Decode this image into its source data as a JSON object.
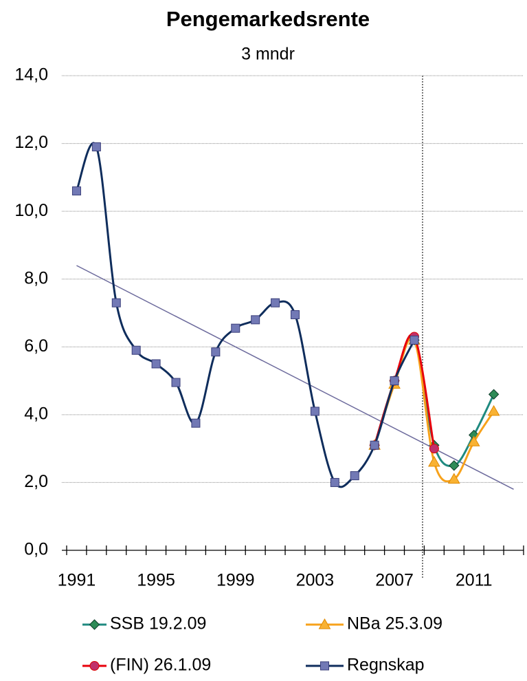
{
  "chart_data": {
    "type": "line",
    "title": "Pengemarkedsrente",
    "subtitle": "3 mndr",
    "categories": [
      "1991",
      null,
      null,
      null,
      "1995",
      null,
      null,
      null,
      "1999",
      null,
      null,
      null,
      "2003",
      null,
      null,
      null,
      "2007",
      null,
      null,
      null,
      "2011",
      null,
      null
    ],
    "series": [
      {
        "name": "SSB 19.2.09",
        "color": "#1f8a80",
        "marker": "diamond",
        "marker_color": "#2e8b57",
        "values": [
          null,
          null,
          null,
          null,
          null,
          null,
          null,
          null,
          null,
          null,
          null,
          null,
          null,
          null,
          null,
          3.1,
          5.0,
          6.2,
          3.1,
          2.5,
          3.4,
          4.6,
          null
        ]
      },
      {
        "name": "NBa 25.3.09",
        "color": "#f7a21b",
        "marker": "triangle",
        "marker_color": "#f9b233",
        "values": [
          null,
          null,
          null,
          null,
          null,
          null,
          null,
          null,
          null,
          null,
          null,
          null,
          null,
          null,
          null,
          3.1,
          4.9,
          6.2,
          2.6,
          2.1,
          3.2,
          4.1,
          null
        ]
      },
      {
        "name": "(FIN) 26.1.09",
        "color": "#e8000b",
        "marker": "circle",
        "marker_color": "#c0306a",
        "values": [
          null,
          null,
          null,
          null,
          null,
          null,
          null,
          null,
          null,
          null,
          null,
          null,
          null,
          null,
          null,
          3.1,
          5.0,
          6.3,
          3.0,
          null,
          null,
          null,
          null
        ]
      },
      {
        "name": "Regnskap",
        "color": "#0f2d5c",
        "marker": "square",
        "marker_color": "#7279b5",
        "values": [
          10.6,
          11.9,
          7.3,
          5.9,
          5.5,
          4.95,
          3.75,
          5.85,
          6.55,
          6.8,
          7.3,
          6.95,
          4.1,
          2.0,
          2.2,
          3.1,
          5.0,
          6.2,
          null,
          null,
          null,
          null,
          null
        ]
      }
    ],
    "trendline": {
      "color": "#6c6a9c",
      "values": [
        8.4,
        null,
        null,
        null,
        null,
        null,
        null,
        null,
        null,
        null,
        null,
        null,
        null,
        null,
        null,
        null,
        null,
        null,
        null,
        null,
        null,
        null,
        1.8
      ]
    },
    "ylim": [
      0,
      14
    ],
    "yticks": [
      {
        "value": 0,
        "label": "0,0"
      },
      {
        "value": 2,
        "label": "2,0"
      },
      {
        "value": 4,
        "label": "4,0"
      },
      {
        "value": 6,
        "label": "6,0"
      },
      {
        "value": 8,
        "label": "8,0"
      },
      {
        "value": 10,
        "label": "10,0"
      },
      {
        "value": 12,
        "label": "12,0"
      },
      {
        "value": 14,
        "label": "14,0"
      }
    ],
    "grid": true
  }
}
